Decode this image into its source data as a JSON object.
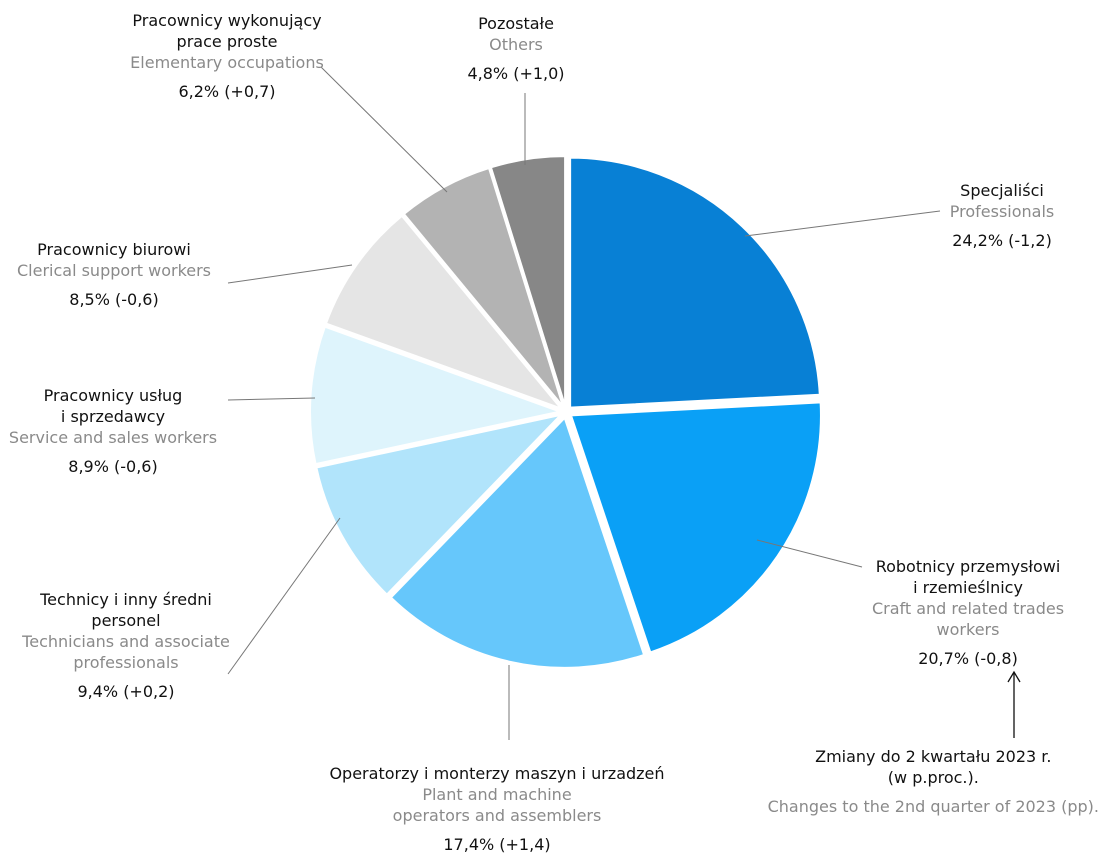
{
  "chart_data": {
    "type": "pie",
    "slices": [
      {
        "name_pl": "Specjaliści",
        "name_en": "Professionals",
        "value": 24.2,
        "change": "-1,2",
        "label": "24,2% (-1,2)",
        "color": "#0880d5"
      },
      {
        "name_pl": "Robotnicy przemysłowi i rzemieślnicy",
        "name_en": "Craft and related trades workers",
        "value": 20.7,
        "change": "-0,8",
        "label": "20,7% (-0,8)",
        "color": "#0aa0f6"
      },
      {
        "name_pl": "Operatorzy i monterzy maszyn i urzadzeń",
        "name_en": "Plant and machine operators and assemblers",
        "value": 17.4,
        "change": "+1,4",
        "label": "17,4% (+1,4)",
        "color": "#66c7fb"
      },
      {
        "name_pl": "Technicy i inny średni personel",
        "name_en": "Technicians and associate professionals",
        "value": 9.4,
        "change": "+0,2",
        "label": "9,4% (+0,2)",
        "color": "#b1e4fb"
      },
      {
        "name_pl": "Pracownicy usług i sprzedawcy",
        "name_en": "Service and sales workers",
        "value": 8.9,
        "change": "-0,6",
        "label": "8,9% (-0,6)",
        "color": "#def4fc"
      },
      {
        "name_pl": "Pracownicy biurowi",
        "name_en": "Clerical support workers",
        "value": 8.5,
        "change": "-0,6",
        "label": "8,5% (-0,6)",
        "color": "#e5e5e5"
      },
      {
        "name_pl": "Pracownicy wykonujący prace proste",
        "name_en": "Elementary occupations",
        "value": 6.2,
        "change": "+0,7",
        "label": "6,2% (+0,7)",
        "color": "#b3b3b3"
      },
      {
        "name_pl": "Pozostałe",
        "name_en": "Others",
        "value": 4.8,
        "change": "+1,0",
        "label": "4,8% (+1,0)",
        "color": "#878787"
      }
    ],
    "labels": {
      "specjalisci": {
        "pl": [
          "Specjaliści"
        ],
        "en": [
          "Professionals"
        ],
        "val": "24,2% (-1,2)"
      },
      "robotnicy": {
        "pl": [
          "Robotnicy przemysłowi",
          "i rzemieślnicy"
        ],
        "en": [
          "Craft and related trades",
          "workers"
        ],
        "val": "20,7% (-0,8)"
      },
      "operatorzy": {
        "pl": [
          "Operatorzy i monterzy maszyn i urzadzeń"
        ],
        "en": [
          "Plant and machine",
          "operators and assemblers"
        ],
        "val": "17,4% (+1,4)"
      },
      "technicy": {
        "pl": [
          "Technicy i inny średni",
          "personel"
        ],
        "en": [
          "Technicians and associate",
          "professionals"
        ],
        "val": "9,4% (+0,2)"
      },
      "uslugi": {
        "pl": [
          "Pracownicy usług",
          "i sprzedawcy"
        ],
        "en": [
          "Service and sales workers"
        ],
        "val": "8,9% (-0,6)"
      },
      "biurowi": {
        "pl": [
          "Pracownicy biurowi"
        ],
        "en": [
          "Clerical support workers"
        ],
        "val": "8,5% (-0,6)"
      },
      "proste": {
        "pl": [
          "Pracownicy wykonujący",
          "prace proste"
        ],
        "en": [
          "Elementary occupations"
        ],
        "val": "6,2% (+0,7)"
      },
      "pozostale": {
        "pl": [
          "Pozostałe"
        ],
        "en": [
          "Others"
        ],
        "val": "4,8% (+1,0)"
      }
    },
    "note": {
      "pl": [
        "Zmiany do 2 kwartału 2023 r.",
        "(w p.proc.)."
      ],
      "en": "Changes to the 2nd quarter of 2023 (pp)."
    }
  }
}
